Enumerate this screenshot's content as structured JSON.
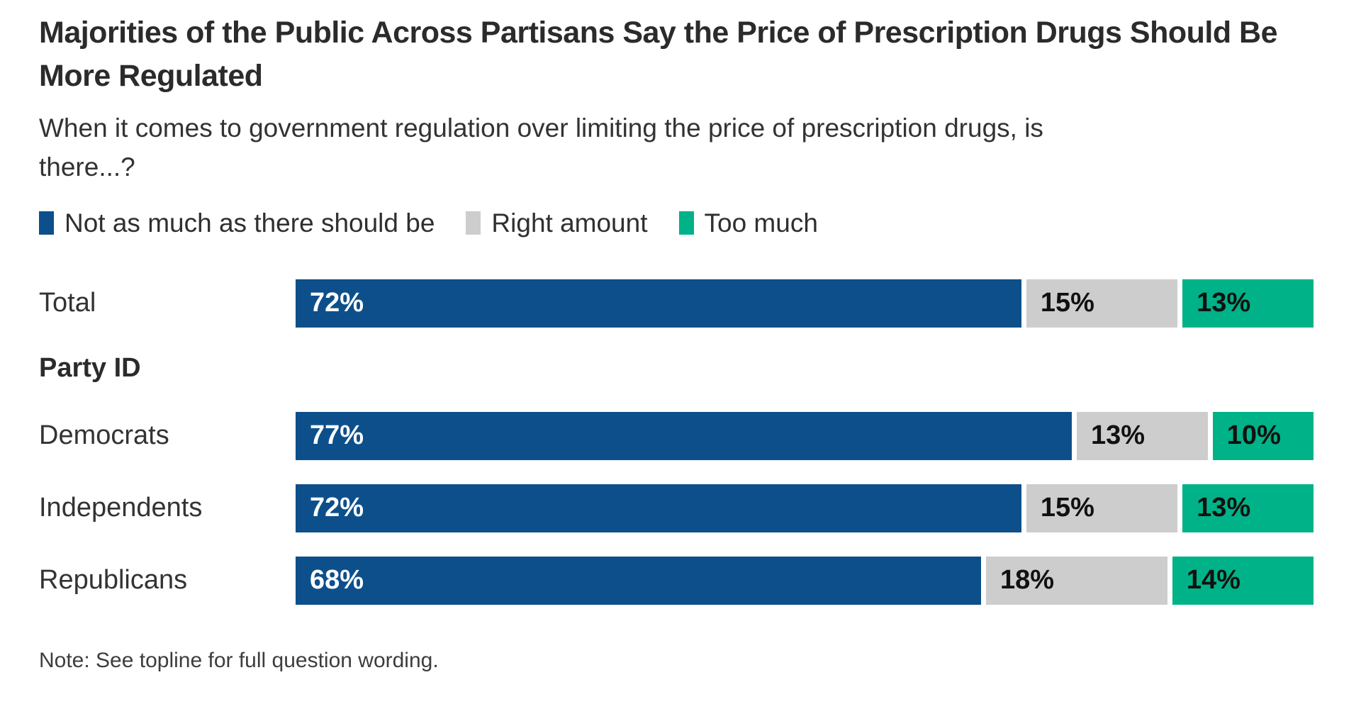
{
  "title": "Majorities of the Public Across Partisans Say the Price of Prescription Drugs Should Be More Regulated",
  "subtitle": "When it comes to government regulation over limiting the price of prescription drugs, is there...?",
  "legend": [
    {
      "label": "Not as much as there should be",
      "color": "#0d4f8b"
    },
    {
      "label": "Right amount",
      "color": "#cdcdcd"
    },
    {
      "label": "Too much",
      "color": "#00b287"
    }
  ],
  "section_label": "Party ID",
  "note": "Note: See topline for full question wording.",
  "chart_data": {
    "type": "bar",
    "orientation": "horizontal",
    "stacked": true,
    "unit": "%",
    "xlim": [
      0,
      100
    ],
    "categories": [
      "Total",
      "Democrats",
      "Independents",
      "Republicans"
    ],
    "series": [
      {
        "name": "Not as much as there should be",
        "color": "#0d4f8b",
        "value_label_color": "#ffffff",
        "values": [
          72,
          77,
          72,
          68
        ]
      },
      {
        "name": "Right amount",
        "color": "#cdcdcd",
        "value_label_color": "#111111",
        "values": [
          15,
          13,
          15,
          18
        ]
      },
      {
        "name": "Too much",
        "color": "#00b287",
        "value_label_color": "#111111",
        "values": [
          13,
          10,
          13,
          14
        ]
      }
    ],
    "value_labels_shown": true,
    "axis_shown": false,
    "grid": false,
    "legend_position": "top"
  }
}
